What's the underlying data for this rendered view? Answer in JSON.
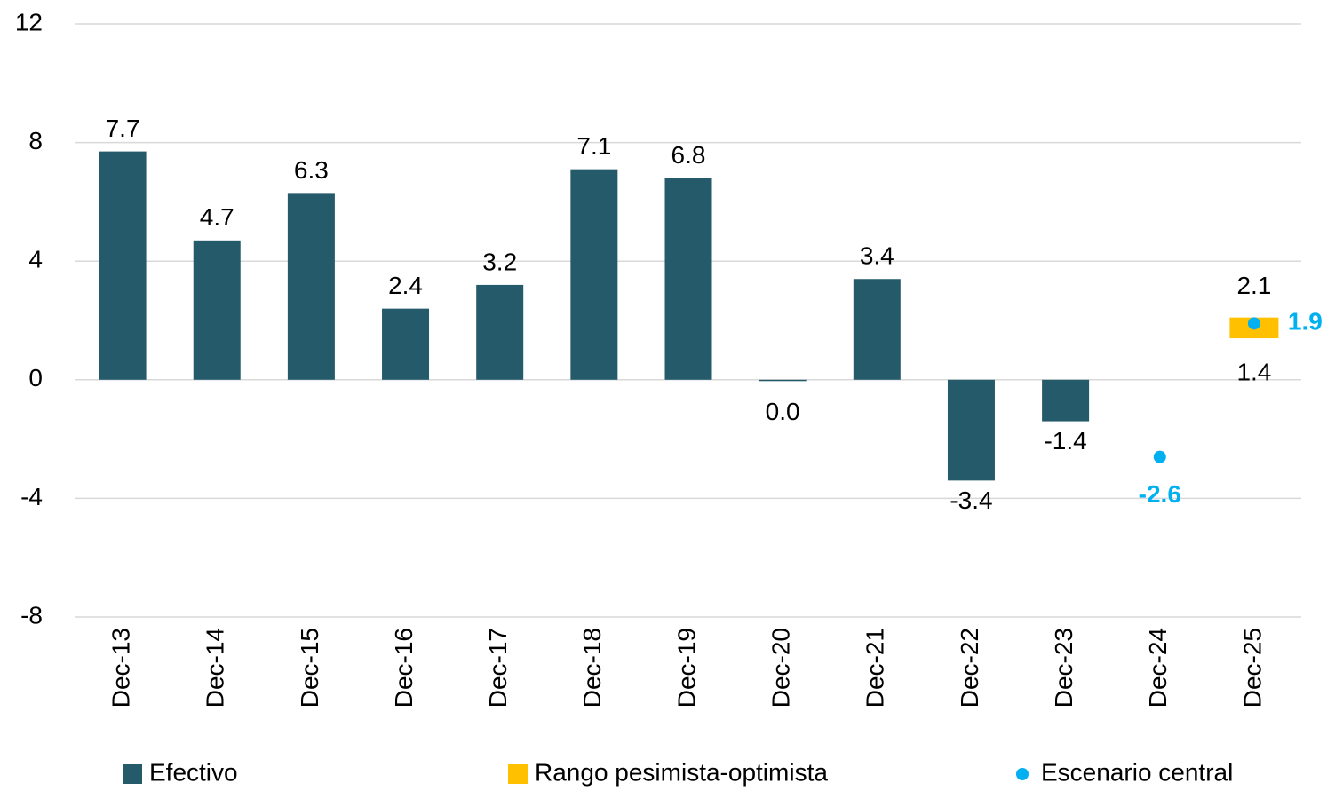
{
  "chart_data": {
    "type": "bar",
    "categories": [
      "Dec-13",
      "Dec-14",
      "Dec-15",
      "Dec-16",
      "Dec-17",
      "Dec-18",
      "Dec-19",
      "Dec-20",
      "Dec-21",
      "Dec-22",
      "Dec-23",
      "Dec-24",
      "Dec-25"
    ],
    "series": [
      {
        "name": "Efectivo",
        "color": "#245a6a",
        "kind": "bar",
        "values": [
          7.7,
          4.7,
          6.3,
          2.4,
          3.2,
          7.1,
          6.8,
          0.0,
          3.4,
          -3.4,
          -1.4,
          null,
          null
        ],
        "value_labels": [
          "7.7",
          "4.7",
          "6.3",
          "2.4",
          "3.2",
          "7.1",
          "6.8",
          "0.0",
          "3.4",
          "-3.4",
          "-1.4",
          null,
          null
        ]
      },
      {
        "name": "Rango pesimista-optimista",
        "color": "#ffc000",
        "kind": "range",
        "low": [
          null,
          null,
          null,
          null,
          null,
          null,
          null,
          null,
          null,
          null,
          null,
          null,
          1.4
        ],
        "high": [
          null,
          null,
          null,
          null,
          null,
          null,
          null,
          null,
          null,
          null,
          null,
          null,
          2.1
        ]
      },
      {
        "name": "Escenario central",
        "color": "#00b0f0",
        "kind": "point",
        "values": [
          null,
          null,
          null,
          null,
          null,
          null,
          null,
          null,
          null,
          null,
          null,
          -2.6,
          1.9
        ]
      }
    ],
    "ylim": [
      -8,
      12
    ],
    "yticks": [
      12,
      8,
      4,
      0,
      -4,
      -8
    ],
    "grid": true
  }
}
